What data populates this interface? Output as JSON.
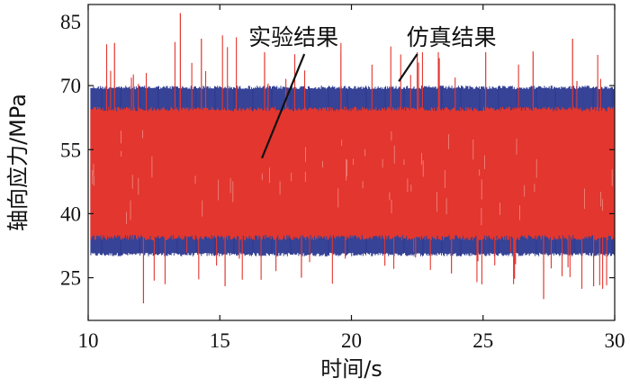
{
  "chart_data": {
    "type": "line",
    "title": "",
    "xlabel": "时间/s",
    "ylabel": "轴向应力/MPa",
    "xlim": [
      10,
      30
    ],
    "ylim": [
      15,
      89
    ],
    "x_ticks": [
      10,
      15,
      20,
      25,
      30
    ],
    "y_ticks": [
      25,
      40,
      55,
      70
    ],
    "grid": false,
    "series": [
      {
        "name": "仿真结果",
        "color": "#2b3990",
        "time_range": [
          10.1,
          30
        ],
        "band_low": 30,
        "band_high": 70,
        "dense_oscillation": true
      },
      {
        "name": "实验结果",
        "color": "#e3362e",
        "time_range": [
          10.1,
          30
        ],
        "band_low": 35,
        "band_high": 64,
        "spike_max": 87,
        "spike_min": 19,
        "dense_oscillation": true
      }
    ],
    "annotations": [
      {
        "text": "实验结果",
        "series": "实验结果",
        "x": 17.8,
        "y": 79.5,
        "point_x": 16.6,
        "point_y": 53
      },
      {
        "text": "仿真结果",
        "series": "仿真结果",
        "x": 23.8,
        "y": 79.5,
        "point_x": 21.8,
        "point_y": 71
      }
    ]
  }
}
